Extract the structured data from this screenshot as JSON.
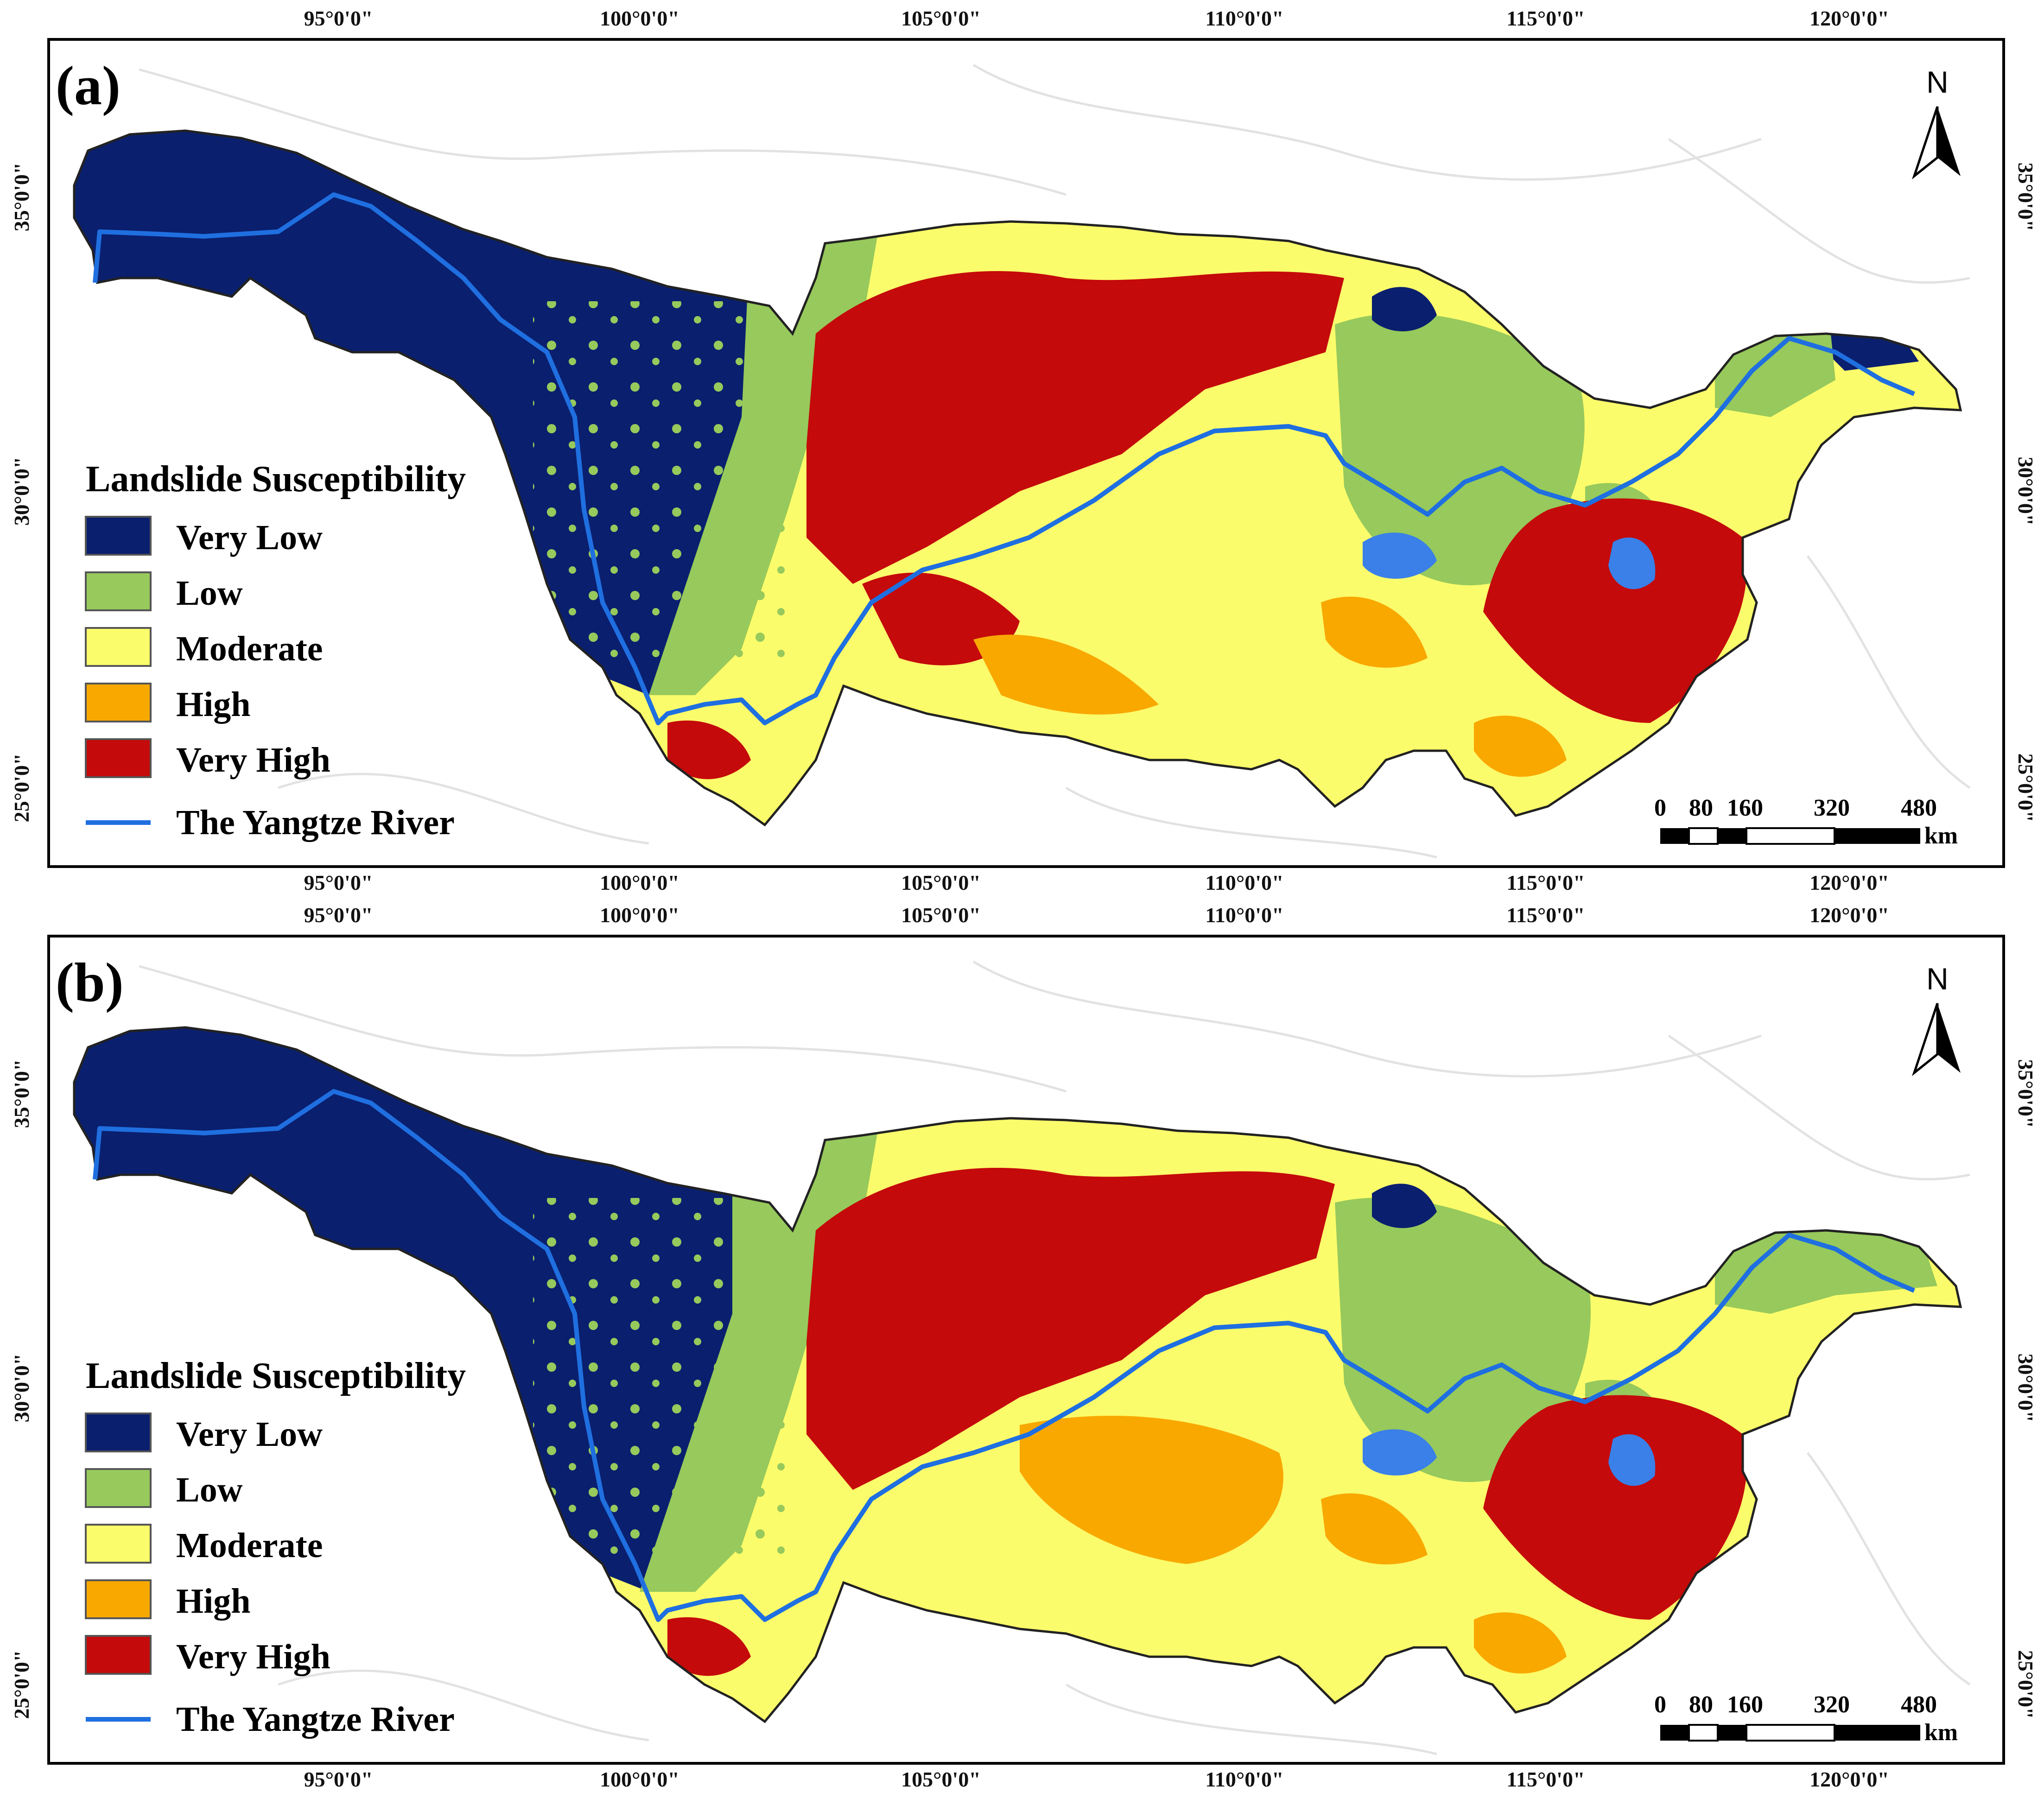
{
  "longitude_ticks": [
    "95°0'0\"",
    "100°0'0\"",
    "105°0'0\"",
    "110°0'0\"",
    "115°0'0\"",
    "120°0'0\""
  ],
  "latitude_ticks": [
    "35°0'0\"",
    "30°0'0\"",
    "25°0'0\""
  ],
  "panels": [
    {
      "label": "(a)"
    },
    {
      "label": "(b)"
    }
  ],
  "legend": {
    "title": "Landslide Susceptibility",
    "classes": [
      {
        "label": "Very Low",
        "color": "#0a1f6e"
      },
      {
        "label": "Low",
        "color": "#97c95c"
      },
      {
        "label": "Moderate",
        "color": "#fbfc6b"
      },
      {
        "label": "High",
        "color": "#f9a800"
      },
      {
        "label": "Very High",
        "color": "#c40a0a"
      }
    ],
    "river": {
      "label": "The Yangtze River",
      "color": "#1f6fe0"
    }
  },
  "north_arrow": {
    "label": "N"
  },
  "scale_bar": {
    "ticks": [
      "0",
      "80",
      "160",
      "320",
      "480"
    ],
    "unit": "km"
  }
}
